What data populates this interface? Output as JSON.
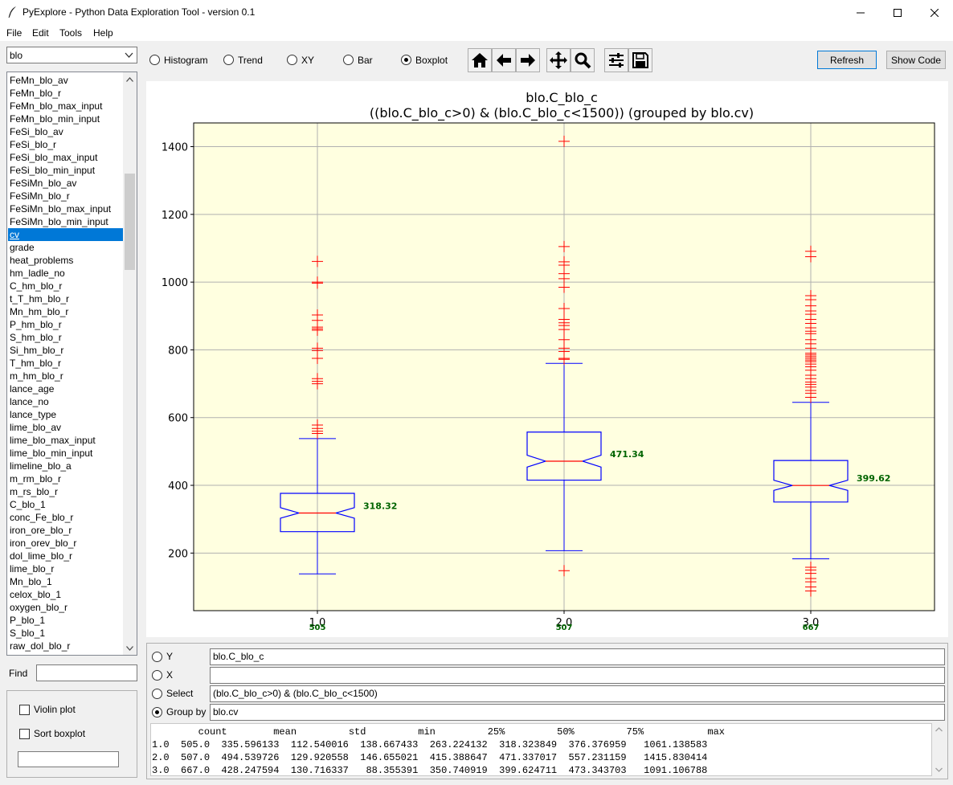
{
  "window": {
    "title": "PyExplore - Python Data Exploration Tool - version 0.1"
  },
  "menu": [
    "File",
    "Edit",
    "Tools",
    "Help"
  ],
  "table_select": {
    "value": "blo"
  },
  "variables": [
    "FeMn_blo_av",
    "FeMn_blo_r",
    "FeMn_blo_max_input",
    "FeMn_blo_min_input",
    "FeSi_blo_av",
    "FeSi_blo_r",
    "FeSi_blo_max_input",
    "FeSi_blo_min_input",
    "FeSiMn_blo_av",
    "FeSiMn_blo_r",
    "FeSiMn_blo_max_input",
    "FeSiMn_blo_min_input",
    "cv",
    "grade",
    "heat_problems",
    "hm_ladle_no",
    "C_hm_blo_r",
    "t_T_hm_blo_r",
    "Mn_hm_blo_r",
    "P_hm_blo_r",
    "S_hm_blo_r",
    "Si_hm_blo_r",
    "T_hm_blo_r",
    "m_hm_blo_r",
    "lance_age",
    "lance_no",
    "lance_type",
    "lime_blo_av",
    "lime_blo_max_input",
    "lime_blo_min_input",
    "limeline_blo_a",
    "m_rm_blo_r",
    "m_rs_blo_r",
    "C_blo_1",
    "conc_Fe_blo_r",
    "iron_ore_blo_r",
    "iron_orev_blo_r",
    "dol_lime_blo_r",
    "lime_blo_r",
    "Mn_blo_1",
    "celox_blo_1",
    "oxygen_blo_r",
    "P_blo_1",
    "S_blo_1",
    "raw_dol_blo_r"
  ],
  "selected_variable": "cv",
  "find": {
    "label": "Find",
    "value": ""
  },
  "options": {
    "violin": "Violin plot",
    "sort": "Sort boxplot",
    "extra_value": ""
  },
  "plot_types": [
    {
      "label": "Histogram",
      "selected": false
    },
    {
      "label": "Trend",
      "selected": false
    },
    {
      "label": "XY",
      "selected": false
    },
    {
      "label": "Bar",
      "selected": false
    },
    {
      "label": "Boxplot",
      "selected": true
    }
  ],
  "nav_icons": [
    "home-icon",
    "back-arrow-icon",
    "forward-arrow-icon",
    "pan-icon",
    "zoom-icon",
    "configure-subplots-icon",
    "save-icon"
  ],
  "buttons": {
    "refresh": "Refresh",
    "show_code": "Show Code"
  },
  "chart_data": {
    "type": "boxplot",
    "title": "blo.C_blo_c",
    "subtitle": "((blo.C_blo_c>0) & (blo.C_blo_c<1500)) (grouped by blo.cv)",
    "ylim": [
      30,
      1470
    ],
    "yticks": [
      200,
      400,
      600,
      800,
      1000,
      1200,
      1400
    ],
    "grid": true,
    "categories": [
      "1.0",
      "2.0",
      "3.0"
    ],
    "counts": [
      "505",
      "507",
      "667"
    ],
    "boxes": [
      {
        "whisker_low": 138.67,
        "q1": 263.22,
        "median": 318.32,
        "q3": 376.38,
        "whisker_high": 538,
        "notch_low": 303,
        "notch_high": 334,
        "median_label": "318.32",
        "outliers": [
          1061,
          1000,
          997,
          903,
          887,
          867,
          862,
          858,
          805,
          798,
          775,
          715,
          707,
          700,
          578,
          568,
          560,
          553
        ]
      },
      {
        "whisker_low": 207,
        "q1": 415.39,
        "median": 471.34,
        "q3": 557.23,
        "whisker_high": 760,
        "notch_low": 454,
        "notch_high": 489,
        "median_label": "471.34",
        "outliers": [
          1415.83,
          1105,
          1060,
          1050,
          1025,
          1010,
          985,
          922,
          890,
          880,
          872,
          860,
          830,
          805,
          795,
          775,
          772,
          148
        ]
      },
      {
        "whisker_low": 183,
        "q1": 350.74,
        "median": 399.62,
        "q3": 473.34,
        "whisker_high": 645,
        "notch_low": 385,
        "notch_high": 415,
        "median_label": "399.62",
        "outliers": [
          1091,
          1075,
          960,
          948,
          930,
          915,
          905,
          890,
          878,
          865,
          855,
          848,
          830,
          818,
          805,
          790,
          785,
          780,
          775,
          770,
          765,
          758,
          750,
          740,
          725,
          715,
          705,
          698,
          690,
          680,
          672,
          660,
          158,
          150,
          140,
          125,
          115,
          100,
          88
        ]
      }
    ],
    "colors": {
      "box": "#0000ff",
      "median": "#ff0000",
      "outlier": "#ff0000",
      "median_label": "#006400",
      "axes_bg": "#ffffe0"
    }
  },
  "query": {
    "y": {
      "label": "Y",
      "value": "blo.C_blo_c",
      "selected": false
    },
    "x": {
      "label": "X",
      "value": "",
      "selected": false
    },
    "select": {
      "label": "Select",
      "value": "(blo.C_blo_c>0) & (blo.C_blo_c<1500)",
      "selected": false
    },
    "group_by": {
      "label": "Group by",
      "value": "blo.cv",
      "selected": true
    }
  },
  "stats": {
    "columns": [
      "count",
      "mean",
      "std",
      "min",
      "25%",
      "50%",
      "75%",
      "max"
    ],
    "rows": [
      {
        "index": "1.0",
        "values": [
          "505.0",
          "335.596133",
          "112.540016",
          "138.667433",
          "263.224132",
          "318.323849",
          "376.376959",
          "1061.138583"
        ]
      },
      {
        "index": "2.0",
        "values": [
          "507.0",
          "494.539726",
          "129.920558",
          "146.655021",
          "415.388647",
          "471.337017",
          "557.231159",
          "1415.830414"
        ]
      },
      {
        "index": "3.0",
        "values": [
          "667.0",
          "428.247594",
          "130.716337",
          "88.355391",
          "350.740919",
          "399.624711",
          "473.343703",
          "1091.106788"
        ]
      }
    ]
  }
}
